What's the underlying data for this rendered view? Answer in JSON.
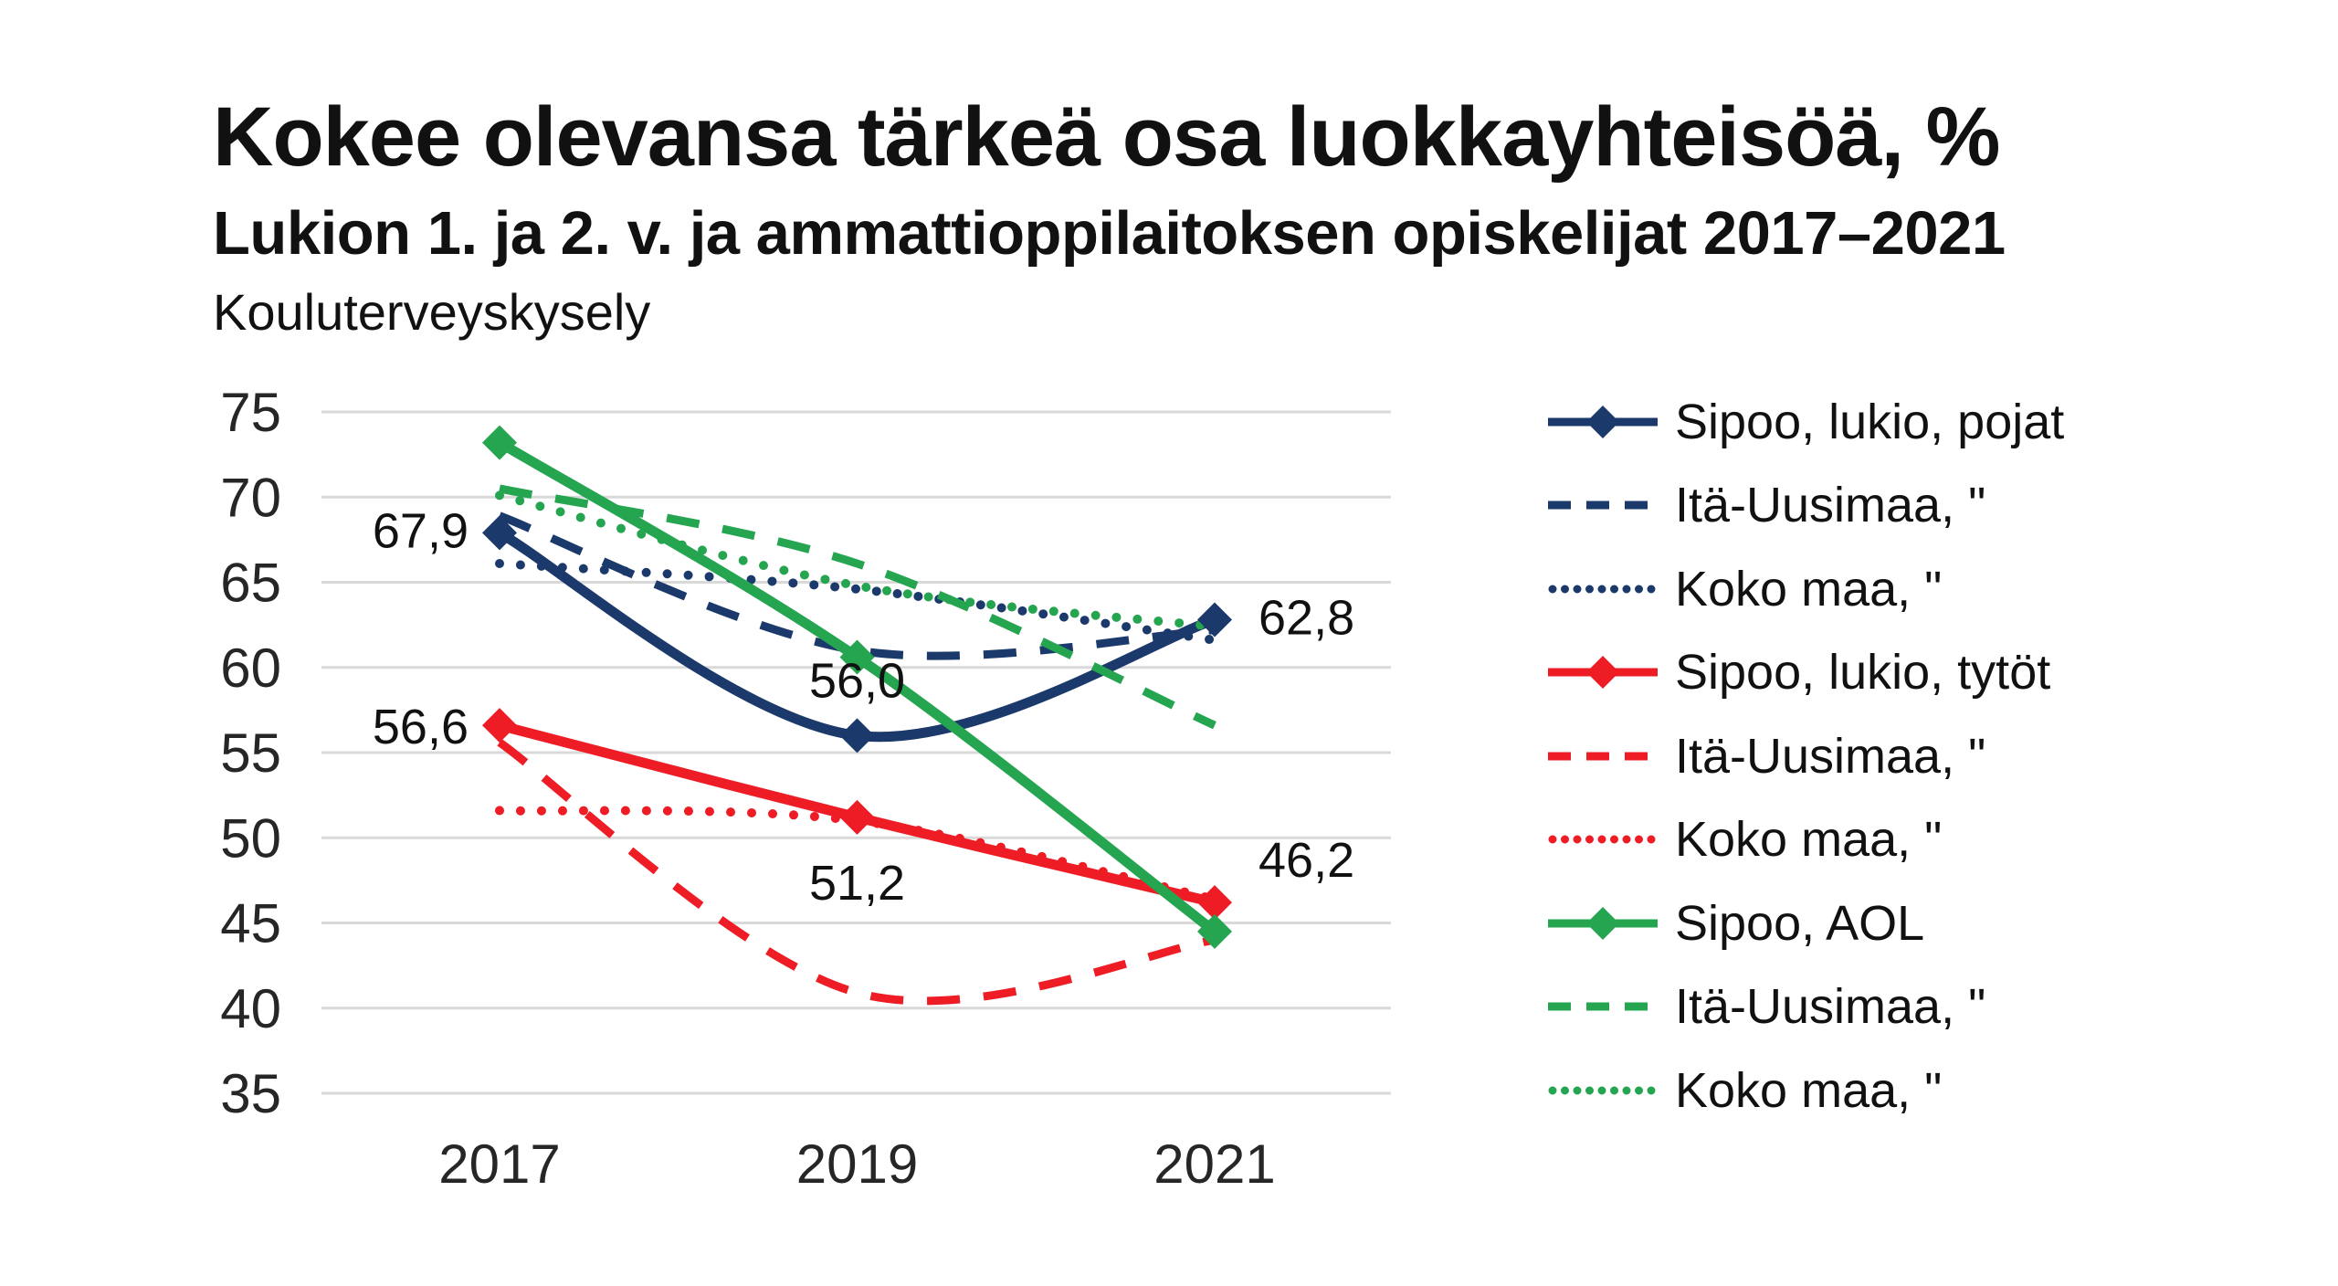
{
  "header": {
    "title": "Kokee olevansa tärkeä osa luokkayhteisöä, %",
    "subtitle": "Lukion 1. ja 2. v. ja ammattioppilaitoksen opiskelijat 2017–2021",
    "source": "Kouluterveyskysely"
  },
  "colors": {
    "navy": "#1b3a6b",
    "red": "#ee1c25",
    "green": "#25a550",
    "gridline": "#d9d9d9",
    "text": "#111111",
    "tick_text": "#262626"
  },
  "chart_data": {
    "type": "line",
    "title": "Kokee olevansa tärkeä osa luokkayhteisöä, %",
    "categories": [
      "2017",
      "2019",
      "2021"
    ],
    "y_ticks": [
      75,
      70,
      65,
      60,
      55,
      50,
      45,
      40,
      35
    ],
    "ylim": [
      35,
      75
    ],
    "grid": "horizontal",
    "legend_position": "right",
    "line_smoothing": true,
    "series": [
      {
        "name": "Sipoo, lukio, pojat",
        "color_key": "navy",
        "style": "solid",
        "marker": "diamond",
        "values": [
          67.9,
          56.0,
          62.8
        ],
        "labels": [
          {
            "text": "67,9",
            "anchor": "end",
            "dx": -34,
            "dy": 16
          },
          {
            "text": "56,0",
            "anchor": "middle",
            "dx": 0,
            "dy": -42
          },
          {
            "text": "62,8",
            "anchor": "start",
            "dx": 48,
            "dy": 16
          }
        ]
      },
      {
        "name": "Itä-Uusimaa, \"",
        "color_key": "navy",
        "style": "dashed",
        "marker": "none",
        "values": [
          68.9,
          61.0,
          62.2
        ]
      },
      {
        "name": "Koko maa, \"",
        "color_key": "navy",
        "style": "dotted",
        "marker": "none",
        "values": [
          66.1,
          64.6,
          61.6
        ]
      },
      {
        "name": "Sipoo, lukio, tytöt",
        "color_key": "red",
        "style": "solid",
        "marker": "diamond",
        "values": [
          56.6,
          51.2,
          46.2
        ],
        "labels": [
          {
            "text": "56,6",
            "anchor": "end",
            "dx": -34,
            "dy": 20
          },
          {
            "text": "51,2",
            "anchor": "middle",
            "dx": 0,
            "dy": 90
          },
          {
            "text": "46,2",
            "anchor": "start",
            "dx": 48,
            "dy": -28
          }
        ]
      },
      {
        "name": "Itä-Uusimaa, \"",
        "color_key": "red",
        "style": "dashed",
        "marker": "none",
        "values": [
          55.6,
          40.9,
          44.0
        ]
      },
      {
        "name": "Koko maa, \"",
        "color_key": "red",
        "style": "dotted",
        "marker": "none",
        "values": [
          51.6,
          51.0,
          46.4
        ]
      },
      {
        "name": "Sipoo, AOL",
        "color_key": "green",
        "style": "solid",
        "marker": "diamond",
        "values": [
          73.2,
          60.6,
          44.5
        ]
      },
      {
        "name": "Itä-Uusimaa, \"",
        "color_key": "green",
        "style": "dashed",
        "marker": "none",
        "values": [
          70.5,
          66.1,
          56.6
        ]
      },
      {
        "name": "Koko maa, \"",
        "color_key": "green",
        "style": "dotted",
        "marker": "none",
        "values": [
          70.1,
          64.8,
          62.4
        ]
      }
    ]
  }
}
